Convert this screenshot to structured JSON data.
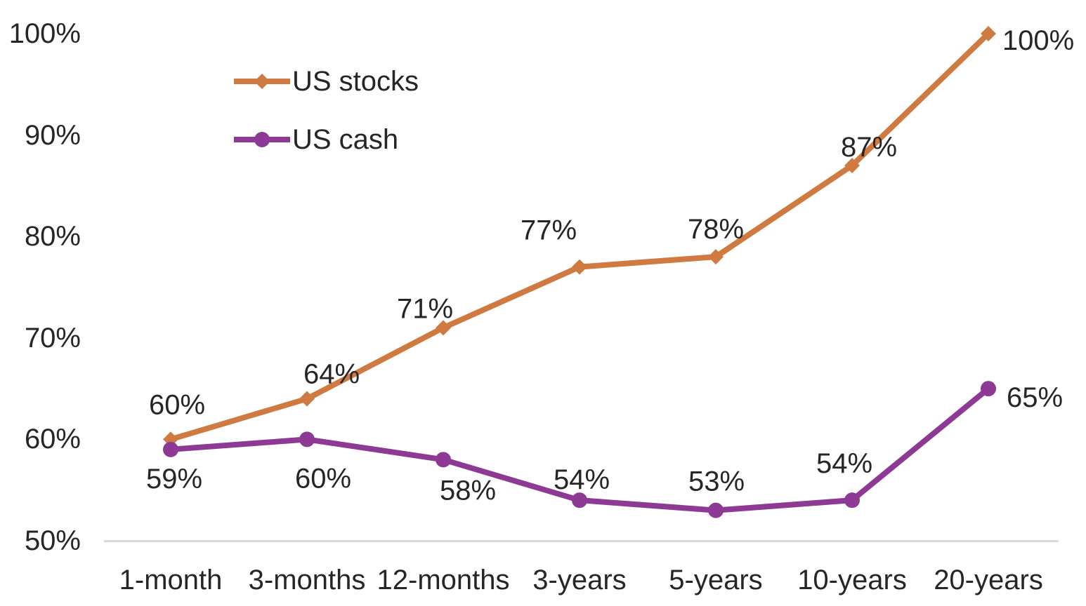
{
  "chart_data": {
    "type": "line",
    "title": "",
    "xlabel": "",
    "ylabel": "",
    "categories": [
      "1-month",
      "3-months",
      "12-months",
      "3-years",
      "5-years",
      "10-years",
      "20-years"
    ],
    "series": [
      {
        "name": "US stocks",
        "color": "#CF7A40",
        "marker": "diamond",
        "values": [
          60,
          64,
          71,
          77,
          78,
          87,
          100
        ],
        "data_labels": [
          "60%",
          "64%",
          "71%",
          "77%",
          "78%",
          "87%",
          "100%"
        ],
        "label_offsets": [
          [
            9,
            -49
          ],
          [
            35,
            -35
          ],
          [
            -26,
            -27
          ],
          [
            -44,
            -52
          ],
          [
            0,
            -39
          ],
          [
            24,
            -26
          ],
          [
            71,
            10
          ]
        ]
      },
      {
        "name": "US cash",
        "color": "#8C3A93",
        "marker": "circle",
        "values": [
          59,
          60,
          58,
          54,
          53,
          54,
          65
        ],
        "data_labels": [
          "59%",
          "60%",
          "58%",
          "54%",
          "53%",
          "54%",
          "65%"
        ],
        "label_offsets": [
          [
            5,
            42
          ],
          [
            23,
            56
          ],
          [
            35,
            44
          ],
          [
            3,
            -29
          ],
          [
            1,
            -41
          ],
          [
            -11,
            -52
          ],
          [
            66,
            13
          ]
        ]
      }
    ],
    "ylim": [
      50,
      100
    ],
    "yticks": [
      100,
      90,
      80,
      70,
      60,
      50
    ],
    "ytick_labels": [
      "100%",
      "90%",
      "80%",
      "70%",
      "60%",
      "50%"
    ],
    "data_label_suffix": "%",
    "grid": "baseline-only",
    "legend_position": "top-left-inset",
    "axis_line_color": "#D9D9D9",
    "text_color": "#262626",
    "background": "#FFFFFF"
  }
}
